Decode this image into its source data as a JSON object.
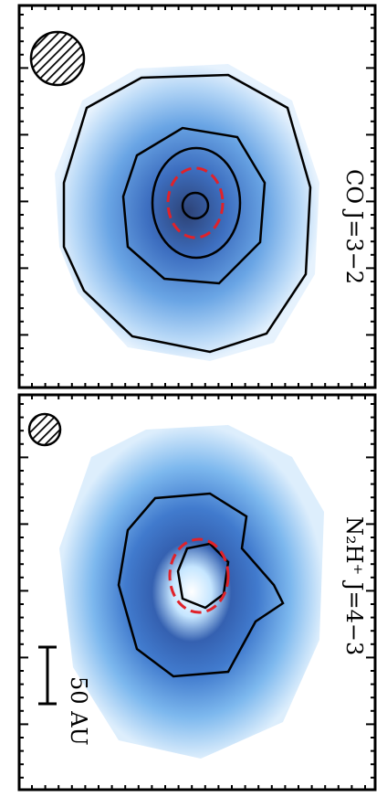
{
  "panels": [
    {
      "label": "CO J=3−2"
    },
    {
      "label": "N₂H⁺ J=4−3",
      "scale_bar": "50 AU"
    }
  ]
}
